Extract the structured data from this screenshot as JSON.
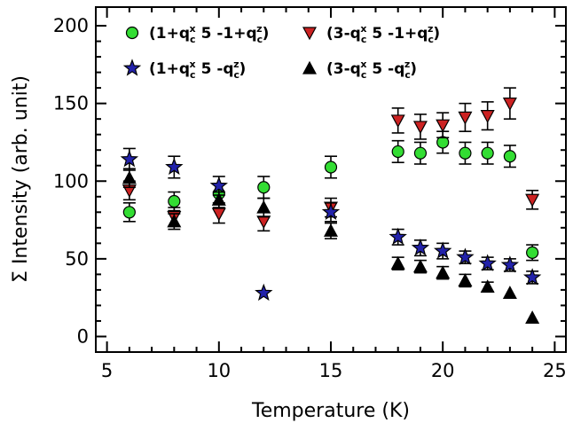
{
  "chart_data": {
    "type": "scatter",
    "xlabel": "Temperature (K)",
    "ylabel": "Σ Intensity (arb. unit)",
    "xlim": [
      4.5,
      25.5
    ],
    "ylim": [
      -10,
      212
    ],
    "xticks": [
      5,
      10,
      15,
      20,
      25
    ],
    "yticks": [
      0,
      50,
      100,
      150,
      200
    ],
    "xtick_labels": [
      "5",
      "10",
      "15",
      "20",
      "25"
    ],
    "ytick_labels": [
      "0",
      "50",
      "100",
      "150",
      "200"
    ],
    "grid": false,
    "legend_position": "top",
    "series": [
      {
        "name": "(1+q_c^x 5 -1+q_c^z)",
        "legend_parts": [
          "(1+q",
          "c",
          "x",
          " 5 -1+q",
          "c",
          "z",
          ")"
        ],
        "marker": "circle",
        "color": "#33dd33",
        "x": [
          6,
          8,
          10,
          12,
          15,
          18,
          19,
          20,
          21,
          22,
          23,
          24
        ],
        "y": [
          80,
          87,
          92,
          96,
          109,
          119,
          118,
          125,
          118,
          118,
          116,
          54
        ],
        "err": [
          6,
          6,
          6,
          7,
          7,
          7,
          7,
          7,
          7,
          7,
          7,
          5
        ]
      },
      {
        "name": "(3-q_c^x 5 -1+q_c^z)",
        "legend_parts": [
          "(3-q",
          "c",
          "x",
          " 5 -1+q",
          "c",
          "z",
          ")"
        ],
        "marker": "triangle-down",
        "color": "#cc2222",
        "x": [
          6,
          8,
          10,
          12,
          15,
          18,
          19,
          20,
          21,
          22,
          23,
          24
        ],
        "y": [
          94,
          77,
          79,
          74,
          83,
          139,
          135,
          136,
          141,
          142,
          150,
          88
        ],
        "err": [
          6,
          6,
          6,
          6,
          6,
          8,
          8,
          8,
          9,
          9,
          10,
          6
        ]
      },
      {
        "name": "(1+q_c^x 5 -q_c^z)",
        "legend_parts": [
          "(1+q",
          "c",
          "x",
          " 5 -q",
          "c",
          "z",
          ")"
        ],
        "marker": "star",
        "color": "#2222aa",
        "x": [
          6,
          8,
          10,
          12,
          15,
          18,
          19,
          20,
          21,
          22,
          23,
          24
        ],
        "y": [
          114,
          109,
          97,
          28,
          80,
          64,
          57,
          55,
          51,
          47,
          46,
          38
        ],
        "err": [
          7,
          7,
          6,
          0,
          6,
          5,
          5,
          5,
          4,
          4,
          4,
          4
        ]
      },
      {
        "name": "(3-q_c^x 5 -q_c^z)",
        "legend_parts": [
          "(3-q",
          "c",
          "x",
          " 5 -q",
          "c",
          "z",
          ")"
        ],
        "marker": "triangle-up",
        "color": "#000000",
        "x": [
          6,
          8,
          10,
          12,
          15,
          18,
          19,
          20,
          21,
          22,
          23,
          24
        ],
        "y": [
          102,
          74,
          88,
          83,
          68,
          47,
          45,
          41,
          36,
          32,
          28,
          12
        ],
        "err": [
          6,
          5,
          5,
          6,
          5,
          4,
          4,
          4,
          4,
          3,
          0,
          0
        ]
      }
    ]
  }
}
